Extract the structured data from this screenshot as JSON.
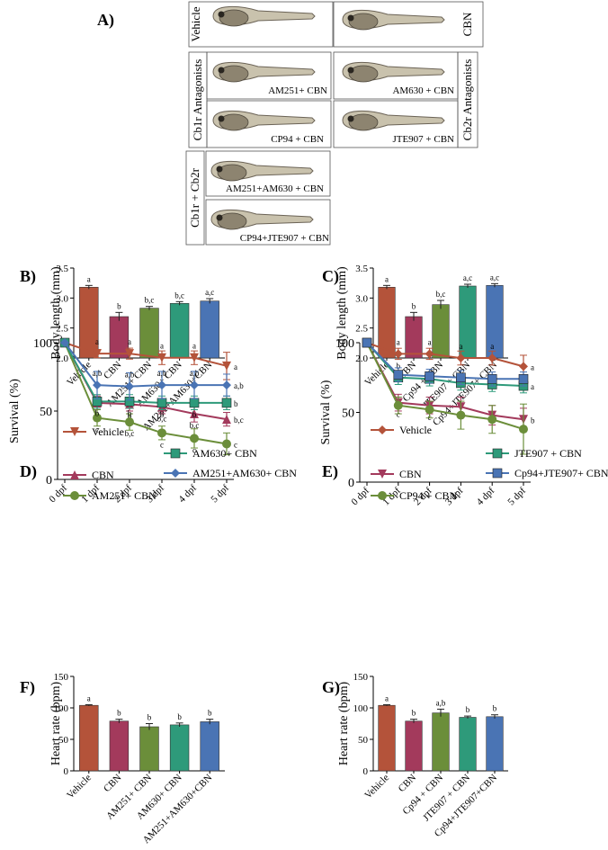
{
  "colors": {
    "vehicle": "#B4533A",
    "cbn": "#A33A5C",
    "am251": "#6B8E3A",
    "am630": "#2E9A7A",
    "combo": "#4A74B4"
  },
  "panels": {
    "A": {
      "label": "A)",
      "vehicle": "Vehicle",
      "cbn": "CBN",
      "cb1r_group": "Cb1r Antagonists",
      "cb2r_group": "Cb2r Antagonists",
      "combo_group": "Cb1r + Cb2r",
      "images": [
        "AM251+ CBN",
        "AM630 + CBN",
        "CP94 + CBN",
        "JTE907 + CBN",
        "AM251+AM630 + CBN",
        "CP94+JTE907 + CBN"
      ]
    }
  },
  "chart_data": [
    {
      "panel": "B)",
      "type": "bar",
      "ylabel": "Body length (mm)",
      "ylim": [
        2.0,
        3.5
      ],
      "yticks": [
        "2.0",
        "2.5",
        "3.0",
        "3.5"
      ],
      "ytick_values": [
        2.0,
        2.5,
        3.0,
        3.5
      ],
      "categories": [
        "Vehicle",
        "CBN",
        "AM251+ CBN",
        "AM630+ CBN",
        "AM251+AM630+CBN"
      ],
      "values": [
        3.18,
        2.69,
        2.83,
        2.91,
        2.95
      ],
      "errors": [
        0.03,
        0.07,
        0.03,
        0.03,
        0.04
      ],
      "letters": [
        "a",
        "b",
        "b,c",
        "b,c",
        "a,c"
      ],
      "color_keys": [
        "vehicle",
        "cbn",
        "am251",
        "am630",
        "combo"
      ]
    },
    {
      "panel": "C)",
      "type": "bar",
      "ylabel": "Body length (mm)",
      "ylim": [
        2.0,
        3.5
      ],
      "yticks": [
        "2.0",
        "2.5",
        "3.0",
        "3.5"
      ],
      "ytick_values": [
        2.0,
        2.5,
        3.0,
        3.5
      ],
      "categories": [
        "Vehicle",
        "CBN",
        "Cp94 + CBN",
        "JTE907 + CBN",
        "Cp94+JTE907+ CBN"
      ],
      "values": [
        3.18,
        2.69,
        2.89,
        3.2,
        3.21
      ],
      "errors": [
        0.03,
        0.07,
        0.07,
        0.03,
        0.03
      ],
      "letters": [
        "a",
        "b",
        "b,c",
        "a,c",
        "a,c"
      ],
      "color_keys": [
        "vehicle",
        "cbn",
        "am251",
        "am630",
        "combo"
      ]
    },
    {
      "panel": "D)",
      "type": "line",
      "ylabel": "Survival (%)",
      "ylim": [
        0,
        100
      ],
      "yticks": [
        "0",
        "50",
        "100"
      ],
      "ytick_values": [
        0,
        50,
        100
      ],
      "x": [
        "0 dpf",
        "1 dpf",
        "2 dpf",
        "3 dpf",
        "4 dpf",
        "5 dpf"
      ],
      "series": [
        {
          "name": "Vehicle",
          "color_key": "vehicle",
          "marker": "tri-down",
          "values": [
            100,
            92,
            92,
            89,
            89,
            83
          ],
          "errors": [
            0,
            3,
            4,
            5,
            5,
            10
          ],
          "letters": [
            "",
            "a",
            "a",
            "a",
            "a",
            "a"
          ]
        },
        {
          "name": "CBN",
          "color_key": "cbn",
          "marker": "tri-up",
          "values": [
            100,
            56,
            55,
            53,
            48,
            44
          ],
          "errors": [
            0,
            5,
            5,
            5,
            6,
            5
          ],
          "letters": [
            "",
            "b",
            "b",
            "b,c",
            "b,c",
            "b,c"
          ]
        },
        {
          "name": "AM251+ CBN",
          "color_key": "am251",
          "marker": "circle",
          "values": [
            100,
            45,
            42,
            34,
            30,
            26
          ],
          "errors": [
            0,
            6,
            6,
            5,
            7,
            8
          ],
          "letters": [
            "",
            "c",
            "b,c",
            "c",
            "c",
            "c"
          ]
        },
        {
          "name": "AM630+ CBN",
          "color_key": "am630",
          "marker": "square",
          "values": [
            100,
            57,
            57,
            56,
            56,
            56
          ],
          "errors": [
            0,
            5,
            5,
            5,
            5,
            5
          ],
          "letters": [
            "",
            "b",
            "b",
            "b",
            "b",
            "b"
          ]
        },
        {
          "name": "AM251+AM630+ CBN",
          "color_key": "combo",
          "marker": "diamond",
          "values": [
            100,
            69,
            68,
            69,
            69,
            69
          ],
          "errors": [
            0,
            10,
            10,
            10,
            10,
            8
          ],
          "letters": [
            "",
            "a,b",
            "a,b",
            "a,b",
            "a,b",
            "a,b"
          ]
        }
      ]
    },
    {
      "panel": "E)",
      "type": "line",
      "ylabel": "Survival (%)",
      "ylim": [
        0,
        100
      ],
      "yticks": [
        "0",
        "50",
        "100"
      ],
      "ytick_values": [
        0,
        50,
        100
      ],
      "x": [
        "0 dpf",
        "1 dpf",
        "2 dpf",
        "3 dpf",
        "4 dpf",
        "5 dpf"
      ],
      "series": [
        {
          "name": "Vehicle",
          "color_key": "vehicle",
          "marker": "diamond",
          "values": [
            100,
            92,
            92,
            89,
            89,
            83
          ],
          "errors": [
            0,
            4,
            4,
            5,
            5,
            8
          ],
          "letters": [
            "",
            "a",
            "a",
            "a",
            "a",
            "a"
          ]
        },
        {
          "name": "CBN",
          "color_key": "cbn",
          "marker": "tri-down",
          "values": [
            100,
            57,
            55,
            54,
            48,
            45
          ],
          "errors": [
            0,
            6,
            6,
            7,
            7,
            8
          ],
          "letters": [
            "",
            "c",
            "c",
            "",
            "",
            "b"
          ]
        },
        {
          "name": "CP94 + CBN",
          "color_key": "am251",
          "marker": "circle",
          "values": [
            100,
            55,
            52,
            48,
            45,
            38
          ],
          "errors": [
            0,
            6,
            6,
            10,
            10,
            18
          ],
          "letters": [
            "",
            "",
            "",
            "",
            "",
            ""
          ]
        },
        {
          "name": "JTE907 + CBN",
          "color_key": "am630",
          "marker": "square",
          "values": [
            100,
            75,
            74,
            71,
            70,
            69
          ],
          "errors": [
            0,
            5,
            5,
            5,
            5,
            5
          ],
          "letters": [
            "",
            "b",
            "",
            "",
            "",
            "a"
          ]
        },
        {
          "name": "Cp94+JTE907+ CBN",
          "color_key": "combo",
          "marker": "square",
          "values": [
            100,
            77,
            76,
            75,
            74,
            74
          ],
          "errors": [
            0,
            5,
            5,
            5,
            5,
            5
          ],
          "letters": [
            "",
            "",
            "",
            "",
            "",
            ""
          ]
        }
      ]
    },
    {
      "panel": "F)",
      "type": "bar",
      "ylabel": "Heart rate (bpm)",
      "ylim": [
        0,
        150
      ],
      "yticks": [
        "0",
        "50",
        "100",
        "150"
      ],
      "ytick_values": [
        0,
        50,
        100,
        150
      ],
      "categories": [
        "Vehicle",
        "CBN",
        "AM251+ CBN",
        "AM630+ CBN",
        "AM251+AM630+CBN"
      ],
      "values": [
        104,
        79,
        70,
        73,
        78
      ],
      "errors": [
        1,
        3,
        5,
        3,
        4
      ],
      "letters": [
        "a",
        "b",
        "b",
        "b",
        "b"
      ],
      "color_keys": [
        "vehicle",
        "cbn",
        "am251",
        "am630",
        "combo"
      ]
    },
    {
      "panel": "G)",
      "type": "bar",
      "ylabel": "Heart rate (bpm)",
      "ylim": [
        0,
        150
      ],
      "yticks": [
        "0",
        "50",
        "100",
        "150"
      ],
      "ytick_values": [
        0,
        50,
        100,
        150
      ],
      "categories": [
        "Vehicle",
        "CBN",
        "Cp94 + CBN",
        "JTE907 + CBN",
        "Cp94+JTE907+CBN"
      ],
      "values": [
        104,
        79,
        92,
        85,
        86
      ],
      "errors": [
        1,
        3,
        6,
        2,
        3
      ],
      "letters": [
        "a",
        "b",
        "a,b",
        "b",
        "b"
      ],
      "color_keys": [
        "vehicle",
        "cbn",
        "am251",
        "am630",
        "combo"
      ]
    }
  ]
}
